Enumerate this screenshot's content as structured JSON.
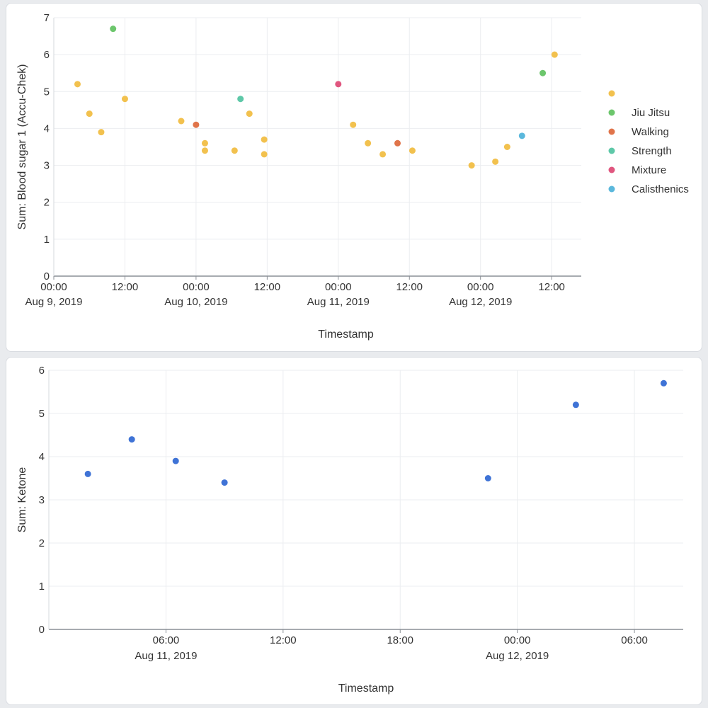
{
  "chart_data": [
    {
      "type": "scatter",
      "xlabel": "Timestamp",
      "ylabel": "Sum: Blood sugar 1 (Accu-Chek)",
      "ylim": [
        0,
        7
      ],
      "yticks": [
        "0",
        "1",
        "2",
        "3",
        "4",
        "5",
        "6",
        "7"
      ],
      "xlim": [
        "2019-08-09T00:00",
        "2019-08-12T17:00"
      ],
      "xticks": [
        {
          "at": "2019-08-09T00:00",
          "label": "00:00",
          "sublabel": "Aug 9, 2019"
        },
        {
          "at": "2019-08-09T12:00",
          "label": "12:00",
          "sublabel": ""
        },
        {
          "at": "2019-08-10T00:00",
          "label": "00:00",
          "sublabel": "Aug 10, 2019"
        },
        {
          "at": "2019-08-10T12:00",
          "label": "12:00",
          "sublabel": ""
        },
        {
          "at": "2019-08-11T00:00",
          "label": "00:00",
          "sublabel": "Aug 11, 2019"
        },
        {
          "at": "2019-08-11T12:00",
          "label": "12:00",
          "sublabel": ""
        },
        {
          "at": "2019-08-12T00:00",
          "label": "00:00",
          "sublabel": "Aug 12, 2019"
        },
        {
          "at": "2019-08-12T12:00",
          "label": "12:00",
          "sublabel": ""
        }
      ],
      "grid": true,
      "legend_position": "right",
      "series": [
        {
          "name": "",
          "color": "#f2c14e",
          "points": [
            {
              "x": "2019-08-09T04:00",
              "y": 5.2
            },
            {
              "x": "2019-08-09T06:00",
              "y": 4.4
            },
            {
              "x": "2019-08-09T08:00",
              "y": 3.9
            },
            {
              "x": "2019-08-09T12:00",
              "y": 4.8
            },
            {
              "x": "2019-08-09T21:30",
              "y": 4.2
            },
            {
              "x": "2019-08-10T01:30",
              "y": 3.6
            },
            {
              "x": "2019-08-10T01:30",
              "y": 3.4
            },
            {
              "x": "2019-08-10T06:30",
              "y": 3.4
            },
            {
              "x": "2019-08-10T09:00",
              "y": 4.4
            },
            {
              "x": "2019-08-10T11:30",
              "y": 3.7
            },
            {
              "x": "2019-08-10T11:30",
              "y": 3.3
            },
            {
              "x": "2019-08-11T02:30",
              "y": 4.1
            },
            {
              "x": "2019-08-11T05:00",
              "y": 3.6
            },
            {
              "x": "2019-08-11T07:30",
              "y": 3.3
            },
            {
              "x": "2019-08-11T12:30",
              "y": 3.4
            },
            {
              "x": "2019-08-11T22:30",
              "y": 3.0
            },
            {
              "x": "2019-08-12T02:30",
              "y": 3.1
            },
            {
              "x": "2019-08-12T04:30",
              "y": 3.5
            },
            {
              "x": "2019-08-12T12:30",
              "y": 6.0
            }
          ]
        },
        {
          "name": "Jiu Jitsu",
          "color": "#6cc66c",
          "points": [
            {
              "x": "2019-08-09T10:00",
              "y": 6.7
            },
            {
              "x": "2019-08-12T10:30",
              "y": 5.5
            }
          ]
        },
        {
          "name": "Walking",
          "color": "#e0744a",
          "points": [
            {
              "x": "2019-08-10T00:00",
              "y": 4.1
            },
            {
              "x": "2019-08-11T10:00",
              "y": 3.6
            }
          ]
        },
        {
          "name": "Strength",
          "color": "#5ec8a8",
          "points": [
            {
              "x": "2019-08-10T07:30",
              "y": 4.8
            }
          ]
        },
        {
          "name": "Mixture",
          "color": "#e0567f",
          "points": [
            {
              "x": "2019-08-11T00:00",
              "y": 5.2
            }
          ]
        },
        {
          "name": "Calisthenics",
          "color": "#5bb8dc",
          "points": [
            {
              "x": "2019-08-12T07:00",
              "y": 3.8
            }
          ]
        }
      ]
    },
    {
      "type": "scatter",
      "xlabel": "Timestamp",
      "ylabel": "Sum: Ketone",
      "ylim": [
        0,
        6
      ],
      "yticks": [
        "0",
        "1",
        "2",
        "3",
        "4",
        "5",
        "6"
      ],
      "xlim": [
        "2019-08-11T00:00",
        "2019-08-12T08:30"
      ],
      "xticks": [
        {
          "at": "2019-08-11T06:00",
          "label": "06:00",
          "sublabel": "Aug 11, 2019"
        },
        {
          "at": "2019-08-11T12:00",
          "label": "12:00",
          "sublabel": ""
        },
        {
          "at": "2019-08-11T18:00",
          "label": "18:00",
          "sublabel": ""
        },
        {
          "at": "2019-08-12T00:00",
          "label": "00:00",
          "sublabel": "Aug 12, 2019"
        },
        {
          "at": "2019-08-12T06:00",
          "label": "06:00",
          "sublabel": ""
        }
      ],
      "grid": true,
      "legend_position": "none",
      "series": [
        {
          "name": "",
          "color": "#3f73d6",
          "points": [
            {
              "x": "2019-08-11T02:00",
              "y": 3.6
            },
            {
              "x": "2019-08-11T04:15",
              "y": 4.4
            },
            {
              "x": "2019-08-11T06:30",
              "y": 3.9
            },
            {
              "x": "2019-08-11T09:00",
              "y": 3.4
            },
            {
              "x": "2019-08-11T22:30",
              "y": 3.5
            },
            {
              "x": "2019-08-12T03:00",
              "y": 5.2
            },
            {
              "x": "2019-08-12T07:30",
              "y": 5.7
            }
          ]
        }
      ]
    }
  ]
}
